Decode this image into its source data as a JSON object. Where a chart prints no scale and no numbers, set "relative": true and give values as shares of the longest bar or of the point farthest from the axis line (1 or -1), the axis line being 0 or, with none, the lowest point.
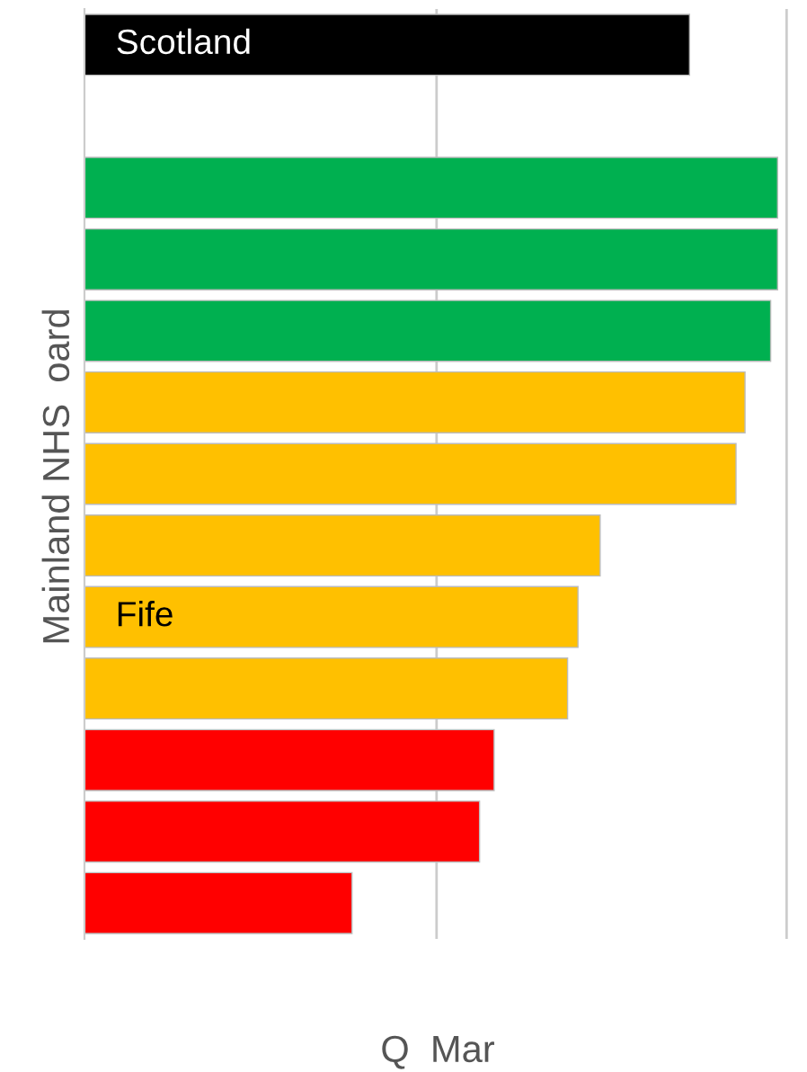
{
  "chart_data": {
    "type": "bar",
    "orientation": "horizontal",
    "relative": true,
    "xlabel": "Q  Mar",
    "ylabel": "Mainland NHS  oard",
    "categories": [
      "Scotland",
      null,
      null,
      null,
      null,
      null,
      null,
      null,
      "Fife",
      null,
      null,
      null,
      null
    ],
    "values": [
      0.873,
      null,
      1,
      1,
      0.99,
      0.953,
      0.94,
      0.744,
      0.712,
      0.697,
      0.591,
      0.57,
      0.386
    ],
    "colors": [
      "#000000",
      null,
      "#00b050",
      "#00b050",
      "#00b050",
      "#ffc000",
      "#ffc000",
      "#ffc000",
      "#ffc000",
      "#ffc000",
      "#ff0000",
      "#ff0000",
      "#ff0000"
    ],
    "ref_lines": [
      {
        "axis": "x",
        "value": 0.508,
        "color": "#cccccc"
      },
      {
        "axis": "x",
        "value": 1.013,
        "color": "#cccccc"
      }
    ]
  }
}
